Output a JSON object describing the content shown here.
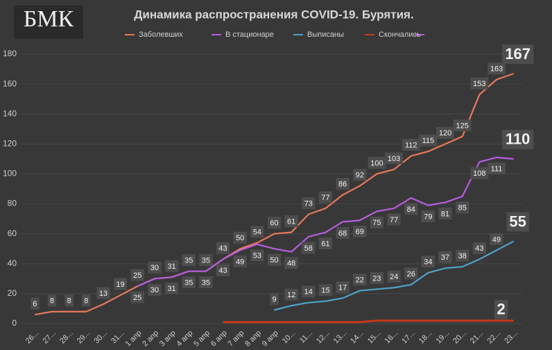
{
  "logo": "БМК",
  "chart_data": {
    "type": "line",
    "title": "Динамика распространения COVID-19. Бурятия.",
    "categories": [
      "26...",
      "27...",
      "28...",
      "29...",
      "30...",
      "31...",
      "1 апр",
      "2 апр",
      "3 апр",
      "4 апр",
      "5 апр",
      "6 апр",
      "7 апр",
      "8 апр",
      "9 апр",
      "10...",
      "11...",
      "12...",
      "13...",
      "14...",
      "15...",
      "16...",
      "17...",
      "18...",
      "19...",
      "20...",
      "21...",
      "22...",
      "23..."
    ],
    "series": [
      {
        "name": "Заболевших",
        "color": "#e8795a",
        "values": [
          6,
          8,
          8,
          8,
          13,
          19,
          25,
          30,
          31,
          35,
          35,
          43,
          50,
          54,
          60,
          61,
          73,
          77,
          86,
          92,
          100,
          103,
          112,
          115,
          120,
          125,
          153,
          163,
          167
        ]
      },
      {
        "name": "В стационаре",
        "color": "#b65de0",
        "values": [
          null,
          null,
          null,
          null,
          null,
          null,
          25,
          30,
          31,
          35,
          35,
          43,
          49,
          53,
          50,
          48,
          58,
          61,
          68,
          69,
          75,
          77,
          84,
          79,
          81,
          85,
          108,
          111,
          110
        ]
      },
      {
        "name": "Выписаны",
        "color": "#4fa3c8",
        "values": [
          null,
          null,
          null,
          null,
          null,
          null,
          null,
          null,
          null,
          null,
          null,
          null,
          null,
          null,
          9,
          12,
          14,
          15,
          17,
          22,
          23,
          24,
          26,
          34,
          37,
          38,
          43,
          49,
          55
        ]
      },
      {
        "name": "Скончались",
        "color": "#c8381e",
        "values": [
          null,
          null,
          null,
          null,
          null,
          null,
          null,
          null,
          null,
          null,
          null,
          1,
          1,
          1,
          1,
          1,
          1,
          1,
          1,
          1,
          2,
          2,
          2,
          2,
          2,
          2,
          2,
          2,
          2
        ]
      }
    ],
    "ylim": [
      0,
      180
    ],
    "yticks": [
      0,
      20,
      40,
      60,
      80,
      100,
      120,
      140,
      160,
      180
    ],
    "grid": true
  }
}
